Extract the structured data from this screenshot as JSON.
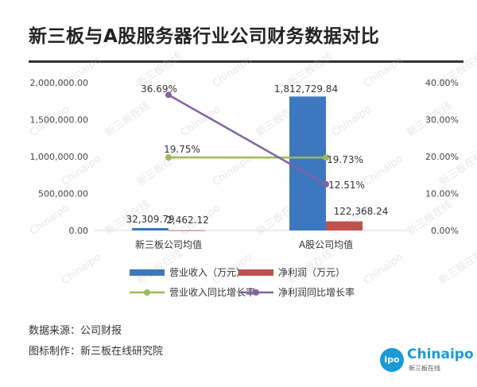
{
  "title": "新三板与A股服务器行业公司财务数据对比",
  "source_line": "数据来源：公司财报",
  "maker_line": "图标制作：新三板在线研究院",
  "logo": {
    "text": "Chinaipo",
    "subtitle": "新三板在线",
    "badge": "ipo"
  },
  "watermark": [
    "Chinaipo",
    "新三板在线"
  ],
  "colors": {
    "revenue": "#3d77c0",
    "profit": "#c0504d",
    "revenue_growth": "#9bbb59",
    "profit_growth": "#8064a2"
  },
  "chart_data": {
    "type": "bar",
    "categories": [
      "新三板公司均值",
      "A股公司均值"
    ],
    "series": [
      {
        "name": "营业收入（万元）",
        "kind": "bar",
        "axis": "left",
        "values": [
          32309.79,
          1812729.84
        ],
        "labels": [
          "32,309.79",
          "1,812,729.84"
        ]
      },
      {
        "name": "净利润（万元）",
        "kind": "bar",
        "axis": "left",
        "values": [
          2462.12,
          122368.24
        ],
        "labels": [
          "2,462.12",
          "122,368.24"
        ]
      },
      {
        "name": "营业收入同比增长率",
        "kind": "line",
        "axis": "right",
        "values": [
          19.75,
          19.73
        ],
        "labels": [
          "19.75%",
          "19.73%"
        ]
      },
      {
        "name": "净利润同比增长率",
        "kind": "line",
        "axis": "right",
        "values": [
          36.69,
          12.51
        ],
        "labels": [
          "36.69%",
          "12.51%"
        ]
      }
    ],
    "y_left": {
      "min": 0,
      "max": 2000000,
      "ticks": [
        0,
        500000,
        1000000,
        1500000,
        2000000
      ],
      "tick_labels": [
        "0.00",
        "500,000.00",
        "1,000,000.00",
        "1,500,000.00",
        "2,000,000.00"
      ]
    },
    "y_right": {
      "min": 0,
      "max": 40,
      "ticks": [
        0,
        10,
        20,
        30,
        40
      ],
      "tick_labels": [
        "0.00%",
        "10.00%",
        "20.00%",
        "30.00%",
        "40.00%"
      ]
    },
    "grid": false,
    "legend_position": "bottom"
  }
}
